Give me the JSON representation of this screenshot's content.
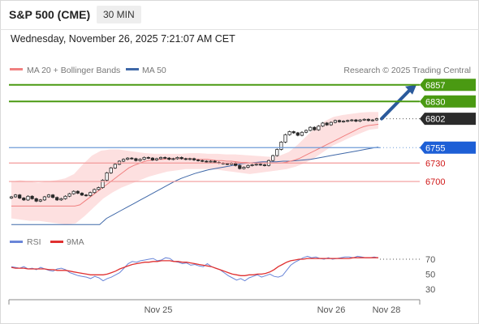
{
  "header": {
    "instrument": "S&P 500 (CME)",
    "timeframe": "30 MIN",
    "datetime": "Wednesday, November 26, 2025 7:21:07 AM CET"
  },
  "colors": {
    "bollinger_fill": "#fde0e0",
    "ma20": "#f08080",
    "ma50": "#3f68a8",
    "green_level": "#4a9a12",
    "pivot_blue": "#1d5fd6",
    "red_level": "#f29a9a",
    "red_label": "#d01818",
    "last_price": "#2b2b2b",
    "arrow": "#2a5a9c",
    "rsi": "#6a86d8",
    "rsi_ma": "#e03030"
  },
  "chart_data": [
    {
      "type": "candlestick",
      "title": "",
      "credit": "Research © 2025 Trading Central",
      "legend": [
        {
          "name": "MA 20 + Bollinger Bands",
          "color": "#f08080",
          "icon": "line-swatch"
        },
        {
          "name": "MA 50",
          "color": "#3f68a8",
          "icon": "line-swatch"
        }
      ],
      "x_tick_labels": [
        "Nov 25",
        "Nov 26",
        "Nov 28"
      ],
      "ylim": [
        6625,
        6862
      ],
      "levels": [
        {
          "label": "6857",
          "value": 6857,
          "style": "resistance-tag",
          "color": "#4a9a12"
        },
        {
          "label": "6830",
          "value": 6830,
          "style": "resistance-tag",
          "color": "#4a9a12"
        },
        {
          "label": "6802",
          "value": 6802,
          "style": "last-price-tag",
          "color": "#2b2b2b"
        },
        {
          "label": "6755",
          "value": 6755,
          "style": "pivot-tag",
          "color": "#1d5fd6"
        },
        {
          "label": "6730",
          "value": 6730,
          "style": "support-text",
          "color": "#d01818"
        },
        {
          "label": "6700",
          "value": 6700,
          "style": "support-text",
          "color": "#d01818"
        }
      ],
      "arrow": {
        "from_value": 6802,
        "to_value": 6857,
        "direction": "up"
      },
      "close": [
        6675,
        6678,
        6673,
        6670,
        6676,
        6672,
        6668,
        6670,
        6675,
        6678,
        6674,
        6670,
        6672,
        6676,
        6680,
        6684,
        6681,
        6678,
        6677,
        6682,
        6687,
        6690,
        6702,
        6714,
        6722,
        6728,
        6733,
        6736,
        6738,
        6737,
        6734,
        6736,
        6739,
        6738,
        6735,
        6737,
        6739,
        6738,
        6736,
        6737,
        6739,
        6737,
        6736,
        6737,
        6735,
        6734,
        6733,
        6732,
        6733,
        6731,
        6730,
        6729,
        6728,
        6730,
        6726,
        6721,
        6723,
        6726,
        6727,
        6728,
        6727,
        6726,
        6734,
        6742,
        6752,
        6764,
        6776,
        6781,
        6779,
        6775,
        6780,
        6783,
        6788,
        6784,
        6790,
        6795,
        6792,
        6796,
        6799,
        6797,
        6798,
        6799,
        6800,
        6798,
        6800,
        6801,
        6799,
        6800,
        6802
      ],
      "ma20": [
        6660,
        6660,
        6660,
        6660,
        6660,
        6660,
        6660,
        6660,
        6660,
        6660,
        6660,
        6660,
        6660,
        6660,
        6662,
        6668,
        6674,
        6680,
        6686,
        6692,
        6698,
        6704,
        6710,
        6716,
        6722,
        6726,
        6729,
        6732,
        6734,
        6735,
        6736,
        6736,
        6737,
        6737,
        6737,
        6737,
        6737,
        6737,
        6736,
        6736,
        6736,
        6735,
        6734,
        6734,
        6733,
        6733,
        6732,
        6731,
        6731,
        6730,
        6730,
        6730,
        6730,
        6730,
        6730,
        6730,
        6731,
        6733,
        6735,
        6738,
        6742,
        6746,
        6750,
        6754,
        6758,
        6762,
        6766,
        6770,
        6774,
        6778,
        6782,
        6786,
        6789,
        6791,
        6792,
        6793
      ],
      "ma50": [
        6630,
        6630,
        6630,
        6630,
        6630,
        6630,
        6630,
        6630,
        6630,
        6630,
        6630,
        6630,
        6630,
        6630,
        6640,
        6646,
        6652,
        6658,
        6664,
        6670,
        6676,
        6682,
        6688,
        6694,
        6700,
        6705,
        6709,
        6713,
        6716,
        6719,
        6721,
        6723,
        6725,
        6727,
        6729,
        6730,
        6731,
        6732,
        6732,
        6732,
        6733,
        6733,
        6734,
        6735,
        6736,
        6738,
        6740,
        6742,
        6744,
        6746,
        6748,
        6750,
        6752,
        6754,
        6756
      ],
      "bb_upper": [
        6700,
        6702,
        6700,
        6698,
        6700,
        6702,
        6705,
        6712,
        6728,
        6742,
        6750,
        6752,
        6752,
        6750,
        6748,
        6746,
        6745,
        6745,
        6745,
        6745,
        6746,
        6746,
        6745,
        6745,
        6744,
        6744,
        6743,
        6742,
        6741,
        6740,
        6742,
        6748,
        6760,
        6774,
        6788,
        6798,
        6805,
        6808,
        6810,
        6812,
        6813,
        6813
      ],
      "bb_lower": [
        6640,
        6638,
        6636,
        6636,
        6634,
        6632,
        6630,
        6632,
        6644,
        6658,
        6672,
        6682,
        6690,
        6696,
        6702,
        6708,
        6712,
        6716,
        6718,
        6720,
        6720,
        6720,
        6720,
        6718,
        6716,
        6714,
        6712,
        6714,
        6716,
        6718,
        6720,
        6724,
        6730,
        6738,
        6748,
        6758,
        6765,
        6772,
        6778,
        6784,
        6786
      ]
    },
    {
      "type": "line",
      "title": "",
      "legend": [
        {
          "name": "RSI",
          "color": "#6a86d8"
        },
        {
          "name": "9MA",
          "color": "#e03030"
        }
      ],
      "ylim": [
        20,
        82
      ],
      "y_ticks": [
        70,
        50,
        30
      ],
      "overbought_level": 70,
      "series": [
        {
          "name": "RSI",
          "values": [
            60,
            59,
            58,
            60,
            57,
            58,
            56,
            59,
            57,
            55,
            54,
            57,
            58,
            56,
            52,
            50,
            48,
            47,
            46,
            44,
            47,
            45,
            41,
            44,
            46,
            49,
            52,
            58,
            64,
            67,
            66,
            68,
            69,
            70,
            71,
            68,
            69,
            72,
            71,
            67,
            66,
            64,
            65,
            62,
            63,
            61,
            60,
            64,
            60,
            58,
            56,
            52,
            48,
            45,
            42,
            44,
            41,
            45,
            47,
            49,
            46,
            48,
            50,
            47,
            46,
            48,
            55,
            62,
            66,
            69,
            72,
            74,
            72,
            73,
            71,
            70,
            72,
            70,
            71,
            72,
            73,
            73,
            72,
            74,
            73,
            72,
            72,
            73,
            72
          ]
        },
        {
          "name": "9MA",
          "values": [
            59,
            58,
            58,
            58,
            57,
            57,
            57,
            57,
            57,
            56,
            56,
            55,
            55,
            55,
            54,
            53,
            52,
            51,
            50,
            49,
            49,
            49,
            49,
            50,
            52,
            54,
            57,
            59,
            61,
            63,
            64,
            65,
            66,
            66,
            67,
            67,
            68,
            68,
            68,
            67,
            67,
            66,
            66,
            65,
            64,
            63,
            62,
            61,
            60,
            58,
            56,
            54,
            52,
            50,
            49,
            48,
            48,
            49,
            49,
            50,
            50,
            51,
            53,
            56,
            60,
            63,
            66,
            68,
            69,
            70,
            70,
            71,
            71,
            71,
            71,
            71,
            71,
            71,
            71,
            71,
            71,
            71,
            72,
            72,
            72,
            72,
            72,
            72,
            72
          ]
        }
      ]
    }
  ]
}
